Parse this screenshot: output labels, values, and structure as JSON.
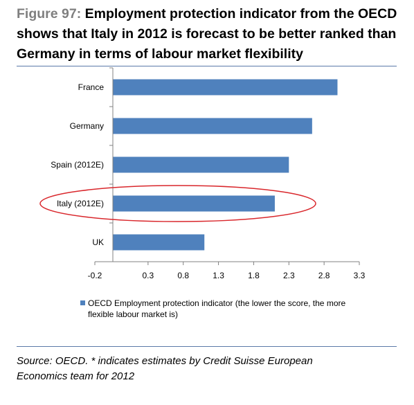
{
  "heading": {
    "figure_label": "Figure 97:",
    "title": "Employment protection indicator from the OECD shows that Italy in 2012 is forecast to be better ranked than Germany in terms of labour market flexibility"
  },
  "chart_data": {
    "type": "bar",
    "orientation": "horizontal",
    "categories": [
      "France",
      "Germany",
      "Spain (2012E)",
      "Italy (2012E)",
      "UK"
    ],
    "series": [
      {
        "name": "OECD Employment protection indicator (the lower the score, the more flexible labour market is)",
        "legend_lines": [
          "OECD Employment protection indicator (the lower the score, the more",
          "flexible labour market is)"
        ],
        "values": [
          2.99,
          2.63,
          2.3,
          2.1,
          1.1
        ]
      }
    ],
    "xlim": [
      -0.2,
      3.3
    ],
    "xticks": [
      -0.2,
      0.3,
      0.8,
      1.3,
      1.8,
      2.3,
      2.8,
      3.3
    ],
    "xtick_labels": [
      "-0.2",
      "0.3",
      "0.8",
      "1.3",
      "1.8",
      "2.3",
      "2.8",
      "3.3"
    ],
    "grid": false,
    "legend_position": "bottom-left",
    "highlight": {
      "category": "Italy (2012E)",
      "shape": "ellipse",
      "color": "#d9262b"
    },
    "bar_color": "#4f81bd"
  },
  "source": {
    "text_line1": "Source: OECD. * indicates estimates by Credit Suisse European",
    "text_line2": "Economics team for 2012"
  }
}
